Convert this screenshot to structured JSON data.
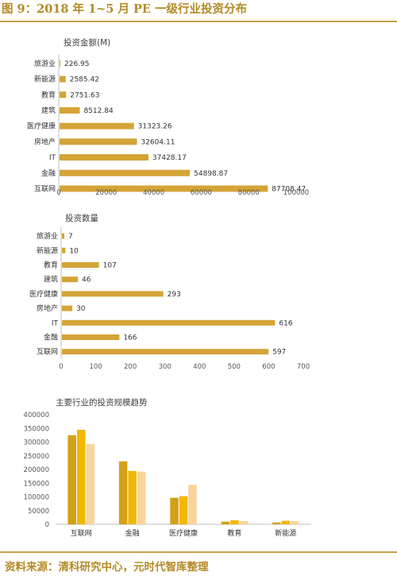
{
  "header": {
    "title": "图 9：2018 年 1~5 月 PE 一级行业投资分布"
  },
  "footer": {
    "source": "资料来源：清科研究中心，元时代智库整理"
  },
  "colors": {
    "bar": "#d4a437",
    "text": "#404040",
    "accent": "#b48a26",
    "series": [
      "#d4a016",
      "#f2b705",
      "#fbd49a"
    ]
  },
  "chart_data": [
    {
      "type": "bar",
      "orientation": "horizontal",
      "title": "投资金额(M)",
      "categories": [
        "旅游业",
        "新能源",
        "教育",
        "建筑",
        "医疗健康",
        "房地产",
        "IT",
        "金融",
        "互联网"
      ],
      "values": [
        226.95,
        2585.42,
        2751.63,
        8512.84,
        31323.26,
        32604.11,
        37428.17,
        54898.87,
        87708.47
      ],
      "value_labels": [
        "226.95",
        "2585.42",
        "2751.63",
        "8512.84",
        "31323.26",
        "32604.11",
        "37428.17",
        "54898.87",
        "87708.47"
      ],
      "xlim": [
        0,
        100000
      ],
      "xticks": [
        0,
        20000,
        40000,
        60000,
        80000,
        100000
      ],
      "grid": false
    },
    {
      "type": "bar",
      "orientation": "horizontal",
      "title": "投资数量",
      "categories": [
        "旅游业",
        "新能源",
        "教育",
        "建筑",
        "医疗健康",
        "房地产",
        "IT",
        "金融",
        "互联网"
      ],
      "values": [
        7,
        10,
        107,
        46,
        293,
        30,
        616,
        166,
        597
      ],
      "value_labels": [
        "7",
        "10",
        "107",
        "46",
        "293",
        "30",
        "616",
        "166",
        "597"
      ],
      "xlim": [
        0,
        700
      ],
      "xticks": [
        0,
        100,
        200,
        300,
        400,
        500,
        600,
        700
      ],
      "grid": false
    },
    {
      "type": "bar",
      "orientation": "vertical",
      "title": "主要行业的投资规模趋势",
      "categories": [
        "互联网",
        "金融",
        "医疗健康",
        "教育",
        "新能源"
      ],
      "series": [
        {
          "values": [
            325000,
            230000,
            97000,
            10000,
            7000
          ]
        },
        {
          "values": [
            345000,
            195000,
            103000,
            15000,
            13000
          ]
        },
        {
          "values": [
            293000,
            192000,
            144000,
            12000,
            12000
          ]
        }
      ],
      "ylim": [
        0,
        400000
      ],
      "yticks": [
        0,
        50000,
        100000,
        150000,
        200000,
        250000,
        300000,
        350000,
        400000
      ],
      "grid": false,
      "legend": "none"
    }
  ]
}
